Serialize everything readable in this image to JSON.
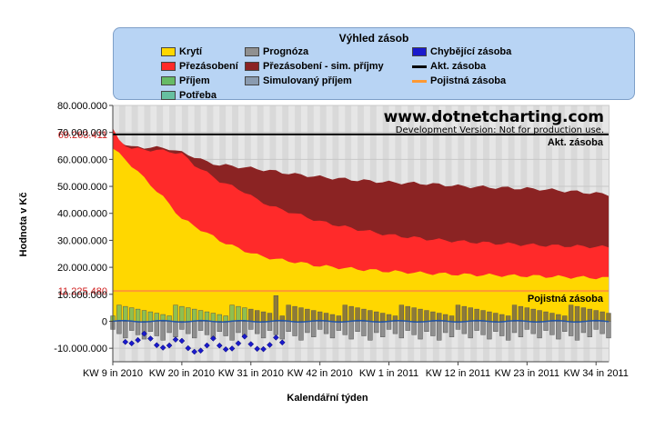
{
  "legend": {
    "title": "Výhled zásob",
    "items": [
      {
        "label": "Krytí",
        "color": "#ffd700",
        "kind": "area"
      },
      {
        "label": "Prognóza",
        "color": "#909090",
        "kind": "bar"
      },
      {
        "label": "Chybějící zásoba",
        "color": "#1a1acc",
        "kind": "area"
      },
      {
        "label": "Přezásobení",
        "color": "#ff2a2a",
        "kind": "area"
      },
      {
        "label": "Přezásobení  - sim. příjmy",
        "color": "#8b2323",
        "kind": "area"
      },
      {
        "label": "Akt. zásoba",
        "color": "#000000",
        "kind": "line"
      },
      {
        "label": "Příjem",
        "color": "#66bb66",
        "kind": "bar"
      },
      {
        "label": "Simulovaný příjem",
        "color": "#8a9bb0",
        "kind": "bar"
      },
      {
        "label": "Pojistná zásoba",
        "color": "#ff9933",
        "kind": "line"
      },
      {
        "label": "Potřeba",
        "color": "#66c0a0",
        "kind": "bar"
      }
    ]
  },
  "watermark": {
    "title": "www.dotnetcharting.com",
    "subtitle": "Development Version: Not for production use."
  },
  "chart_data": {
    "type": "area",
    "xlabel": "Kalendářní týden",
    "ylabel": "Hodnota v Kč",
    "ylim": [
      -15000000,
      80000000
    ],
    "yticks": [
      "80.000.000",
      "70.000.000",
      "60.000.000",
      "50.000.000",
      "40.000.000",
      "30.000.000",
      "20.000.000",
      "10.000.000",
      "0",
      "-10.000.000"
    ],
    "ytick_values": [
      80000000,
      70000000,
      60000000,
      50000000,
      40000000,
      30000000,
      20000000,
      10000000,
      0,
      -10000000
    ],
    "xticks": [
      "KW 9 in 2010",
      "KW 20 in 2010",
      "KW 31 in 2010",
      "KW 42 in 2010",
      "KW 1 in 2011",
      "KW 12 in 2011",
      "KW 23 in 2011",
      "KW 34 in 2011"
    ],
    "week_count": 80,
    "xtick_week_index": [
      0,
      11,
      22,
      33,
      44,
      55,
      66,
      77
    ],
    "reference_lines": [
      {
        "name": "Akt. zásoba",
        "value": 69263411,
        "label": "69.263.411",
        "color": "#000000"
      },
      {
        "name": "Pojistná zásoba",
        "value": 11225480,
        "label": "11.225.480",
        "color": "#ff9933"
      }
    ],
    "series": [
      {
        "name": "Krytí",
        "color": "#ffd700",
        "points": [
          [
            0,
            64000000
          ],
          [
            2,
            60000000
          ],
          [
            5,
            53000000
          ],
          [
            8,
            46000000
          ],
          [
            11,
            38000000
          ],
          [
            14,
            34000000
          ],
          [
            17,
            30000000
          ],
          [
            20,
            27000000
          ],
          [
            23,
            24500000
          ],
          [
            26,
            23000000
          ],
          [
            29,
            22000000
          ],
          [
            33,
            20500000
          ],
          [
            38,
            19500000
          ],
          [
            44,
            18500000
          ],
          [
            50,
            17800000
          ],
          [
            56,
            17300000
          ],
          [
            62,
            17000000
          ],
          [
            68,
            16700000
          ],
          [
            74,
            16300000
          ],
          [
            79,
            16000000
          ]
        ]
      },
      {
        "name": "Přezásobení",
        "color": "#ff2a2a",
        "points": [
          [
            0,
            71000000
          ],
          [
            1,
            67000000
          ],
          [
            3,
            64000000
          ],
          [
            6,
            63500000
          ],
          [
            9,
            63000000
          ],
          [
            11,
            62000000
          ],
          [
            13,
            58000000
          ],
          [
            15,
            55000000
          ],
          [
            17,
            52000000
          ],
          [
            19,
            50000000
          ],
          [
            21,
            48000000
          ],
          [
            23,
            45000000
          ],
          [
            26,
            42000000
          ],
          [
            29,
            40000000
          ],
          [
            33,
            37000000
          ],
          [
            38,
            34500000
          ],
          [
            44,
            32000000
          ],
          [
            50,
            30500000
          ],
          [
            56,
            29500000
          ],
          [
            62,
            28800000
          ],
          [
            68,
            28200000
          ],
          [
            74,
            27800000
          ],
          [
            79,
            27500000
          ]
        ]
      },
      {
        "name": "Přezásobení  - sim. příjmy",
        "color": "#8b2323",
        "points": [
          [
            0,
            71000000
          ],
          [
            1,
            67000000
          ],
          [
            3,
            64500000
          ],
          [
            6,
            64500000
          ],
          [
            9,
            64000000
          ],
          [
            11,
            62500000
          ],
          [
            13,
            61000000
          ],
          [
            15,
            59000000
          ],
          [
            17,
            58000000
          ],
          [
            19,
            57500000
          ],
          [
            21,
            57000000
          ],
          [
            23,
            56500000
          ],
          [
            26,
            55500000
          ],
          [
            29,
            54500000
          ],
          [
            33,
            53500000
          ],
          [
            38,
            52500000
          ],
          [
            44,
            51500000
          ],
          [
            50,
            51000000
          ],
          [
            56,
            50000000
          ],
          [
            62,
            49500000
          ],
          [
            68,
            49000000
          ],
          [
            74,
            48000000
          ],
          [
            79,
            47000000
          ]
        ]
      }
    ]
  }
}
